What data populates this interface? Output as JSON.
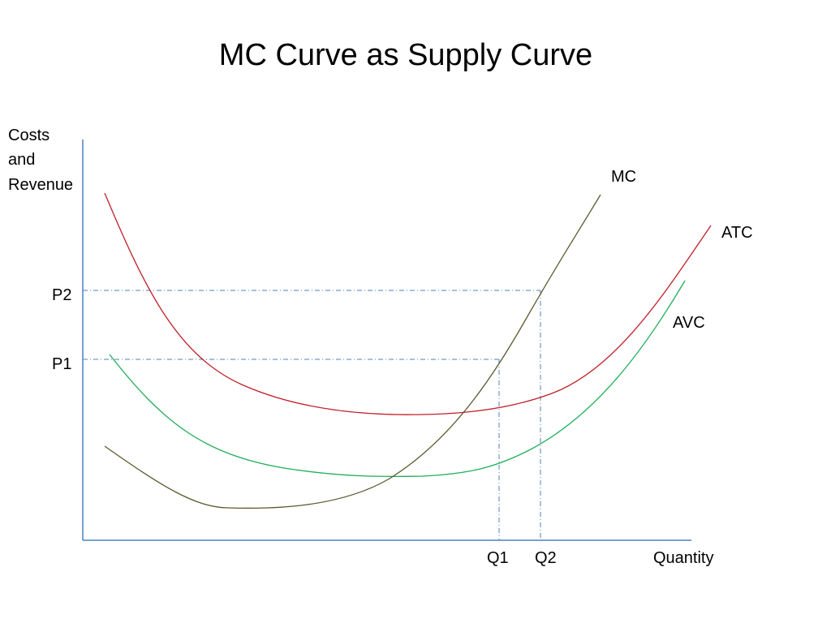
{
  "title": "MC Curve as Supply Curve",
  "y_axis_label": [
    "Costs",
    "and",
    "Revenue"
  ],
  "x_axis_label": "Quantity",
  "price_levels": [
    "P1",
    "P2"
  ],
  "quantity_levels": [
    "Q1",
    "Q2"
  ],
  "curves": [
    {
      "id": "mc",
      "label": "MC",
      "color": "#5a5a2e"
    },
    {
      "id": "atc",
      "label": "ATC",
      "color": "#c0202a"
    },
    {
      "id": "avc",
      "label": "AVC",
      "color": "#1fae5a"
    }
  ],
  "axis_color": "#4f81bd",
  "guide_color": "#4f81bd"
}
